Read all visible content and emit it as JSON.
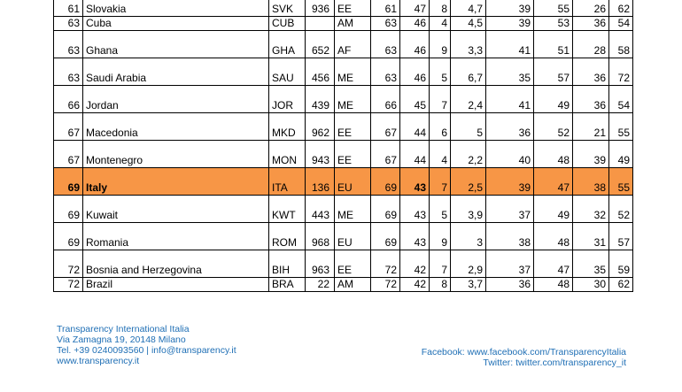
{
  "rows": [
    {
      "rank": "61",
      "country": "Slovakia",
      "code": "SVK",
      "num": "936",
      "region": "EE",
      "c1": "61",
      "c2": "47",
      "c3": "8",
      "c4": "4,7",
      "c5": "39",
      "c6": "55",
      "c7": "26",
      "c8": "62",
      "highlight": false
    },
    {
      "rank": "63",
      "country": "Cuba",
      "code": "CUB",
      "num": "",
      "region": "AM",
      "c1": "63",
      "c2": "46",
      "c3": "4",
      "c4": "4,5",
      "c5": "39",
      "c6": "53",
      "c7": "36",
      "c8": "54",
      "highlight": false
    },
    {
      "rank": "63",
      "country": "Ghana",
      "code": "GHA",
      "num": "652",
      "region": "AF",
      "c1": "63",
      "c2": "46",
      "c3": "9",
      "c4": "3,3",
      "c5": "41",
      "c6": "51",
      "c7": "28",
      "c8": "58",
      "highlight": false
    },
    {
      "rank": "63",
      "country": "Saudi Arabia",
      "code": "SAU",
      "num": "456",
      "region": "ME",
      "c1": "63",
      "c2": "46",
      "c3": "5",
      "c4": "6,7",
      "c5": "35",
      "c6": "57",
      "c7": "36",
      "c8": "72",
      "highlight": false
    },
    {
      "rank": "66",
      "country": "Jordan",
      "code": "JOR",
      "num": "439",
      "region": "ME",
      "c1": "66",
      "c2": "45",
      "c3": "7",
      "c4": "2,4",
      "c5": "41",
      "c6": "49",
      "c7": "36",
      "c8": "54",
      "highlight": false
    },
    {
      "rank": "67",
      "country": "Macedonia",
      "code": "MKD",
      "num": "962",
      "region": "EE",
      "c1": "67",
      "c2": "44",
      "c3": "6",
      "c4": "5",
      "c5": "36",
      "c6": "52",
      "c7": "21",
      "c8": "55",
      "highlight": false
    },
    {
      "rank": "67",
      "country": "Montenegro",
      "code": "MON",
      "num": "943",
      "region": "EE",
      "c1": "67",
      "c2": "44",
      "c3": "4",
      "c4": "2,2",
      "c5": "40",
      "c6": "48",
      "c7": "39",
      "c8": "49",
      "highlight": false
    },
    {
      "rank": "69",
      "country": "Italy",
      "code": "ITA",
      "num": "136",
      "region": "EU",
      "c1": "69",
      "c2": "43",
      "c3": "7",
      "c4": "2,5",
      "c5": "39",
      "c6": "47",
      "c7": "38",
      "c8": "55",
      "highlight": true
    },
    {
      "rank": "69",
      "country": "Kuwait",
      "code": "KWT",
      "num": "443",
      "region": "ME",
      "c1": "69",
      "c2": "43",
      "c3": "5",
      "c4": "3,9",
      "c5": "37",
      "c6": "49",
      "c7": "32",
      "c8": "52",
      "highlight": false
    },
    {
      "rank": "69",
      "country": "Romania",
      "code": "ROM",
      "num": "968",
      "region": "EU",
      "c1": "69",
      "c2": "43",
      "c3": "9",
      "c4": "3",
      "c5": "38",
      "c6": "48",
      "c7": "31",
      "c8": "57",
      "highlight": false
    },
    {
      "rank": "72",
      "country": "Bosnia and Herzegovina",
      "code": "BIH",
      "num": "963",
      "region": "EE",
      "c1": "72",
      "c2": "42",
      "c3": "7",
      "c4": "2,9",
      "c5": "37",
      "c6": "47",
      "c7": "35",
      "c8": "59",
      "highlight": false
    },
    {
      "rank": "72",
      "country": "Brazil",
      "code": "BRA",
      "num": "22",
      "region": "AM",
      "c1": "72",
      "c2": "42",
      "c3": "8",
      "c4": "3,7",
      "c5": "36",
      "c6": "48",
      "c7": "30",
      "c8": "62",
      "highlight": false
    }
  ],
  "footer": {
    "org": "Transparency International Italia",
    "address": "Via Zamagna 19, 20148 Milano",
    "contact": "Tel. +39 0240093560 | info@transparency.it",
    "website": "www.transparency.it",
    "facebook": "Facebook: www.facebook.com/TransparencyItalia",
    "twitter": "Twitter: twitter.com/transparency_it"
  },
  "colors": {
    "highlight": "#f79646",
    "footer_text": "#1f6fb5"
  }
}
